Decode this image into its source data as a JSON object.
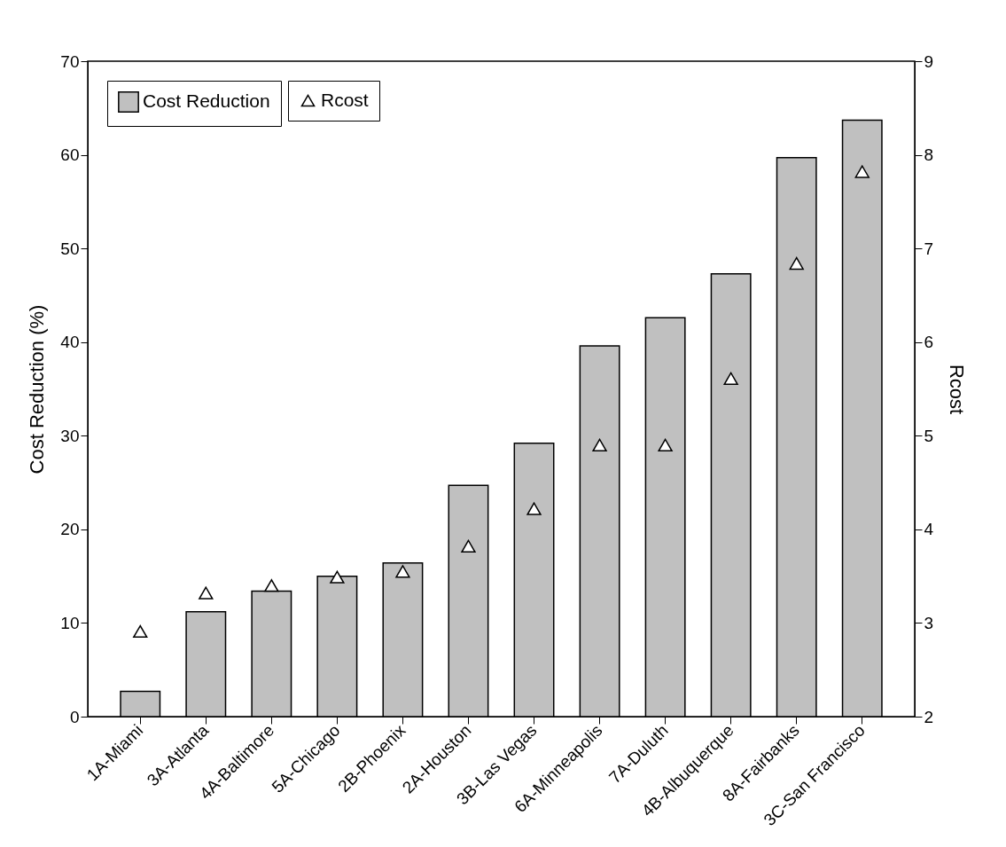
{
  "chart_data": {
    "type": "bar",
    "ylabel": "Cost Reduction (%)",
    "y2label": "Rcost",
    "categories": [
      "1A-Miami",
      "3A-Atlanta",
      "4A-Baltimore",
      "5A-Chicago",
      "2B-Phoenix",
      "2A-Houston",
      "3B-Las Vegas",
      "6A-Minneapolis",
      "7A-Duluth",
      "4B-Albuquerque",
      "8A-Fairbanks",
      "3C-San Francisco"
    ],
    "series": [
      {
        "name": "Cost Reduction",
        "type": "bar",
        "color": "#c0c0c0",
        "values": [
          2.7,
          11.2,
          13.4,
          15.0,
          16.4,
          24.7,
          29.2,
          39.6,
          42.6,
          47.3,
          59.7,
          63.7
        ]
      },
      {
        "name": "Rcost",
        "type": "scatter",
        "axis": "y2",
        "marker": "triangle",
        "color": "#000000",
        "values": [
          2.91,
          3.32,
          3.4,
          3.49,
          3.55,
          3.82,
          4.22,
          4.9,
          4.9,
          5.61,
          6.84,
          7.82
        ]
      }
    ],
    "ylim": [
      0,
      70
    ],
    "yticks": [
      0,
      10,
      20,
      30,
      40,
      50,
      60,
      70
    ],
    "y2lim": [
      2,
      9
    ],
    "y2ticks": [
      2,
      3,
      4,
      5,
      6,
      7,
      8,
      9
    ],
    "grid": false,
    "legend": "top left"
  }
}
